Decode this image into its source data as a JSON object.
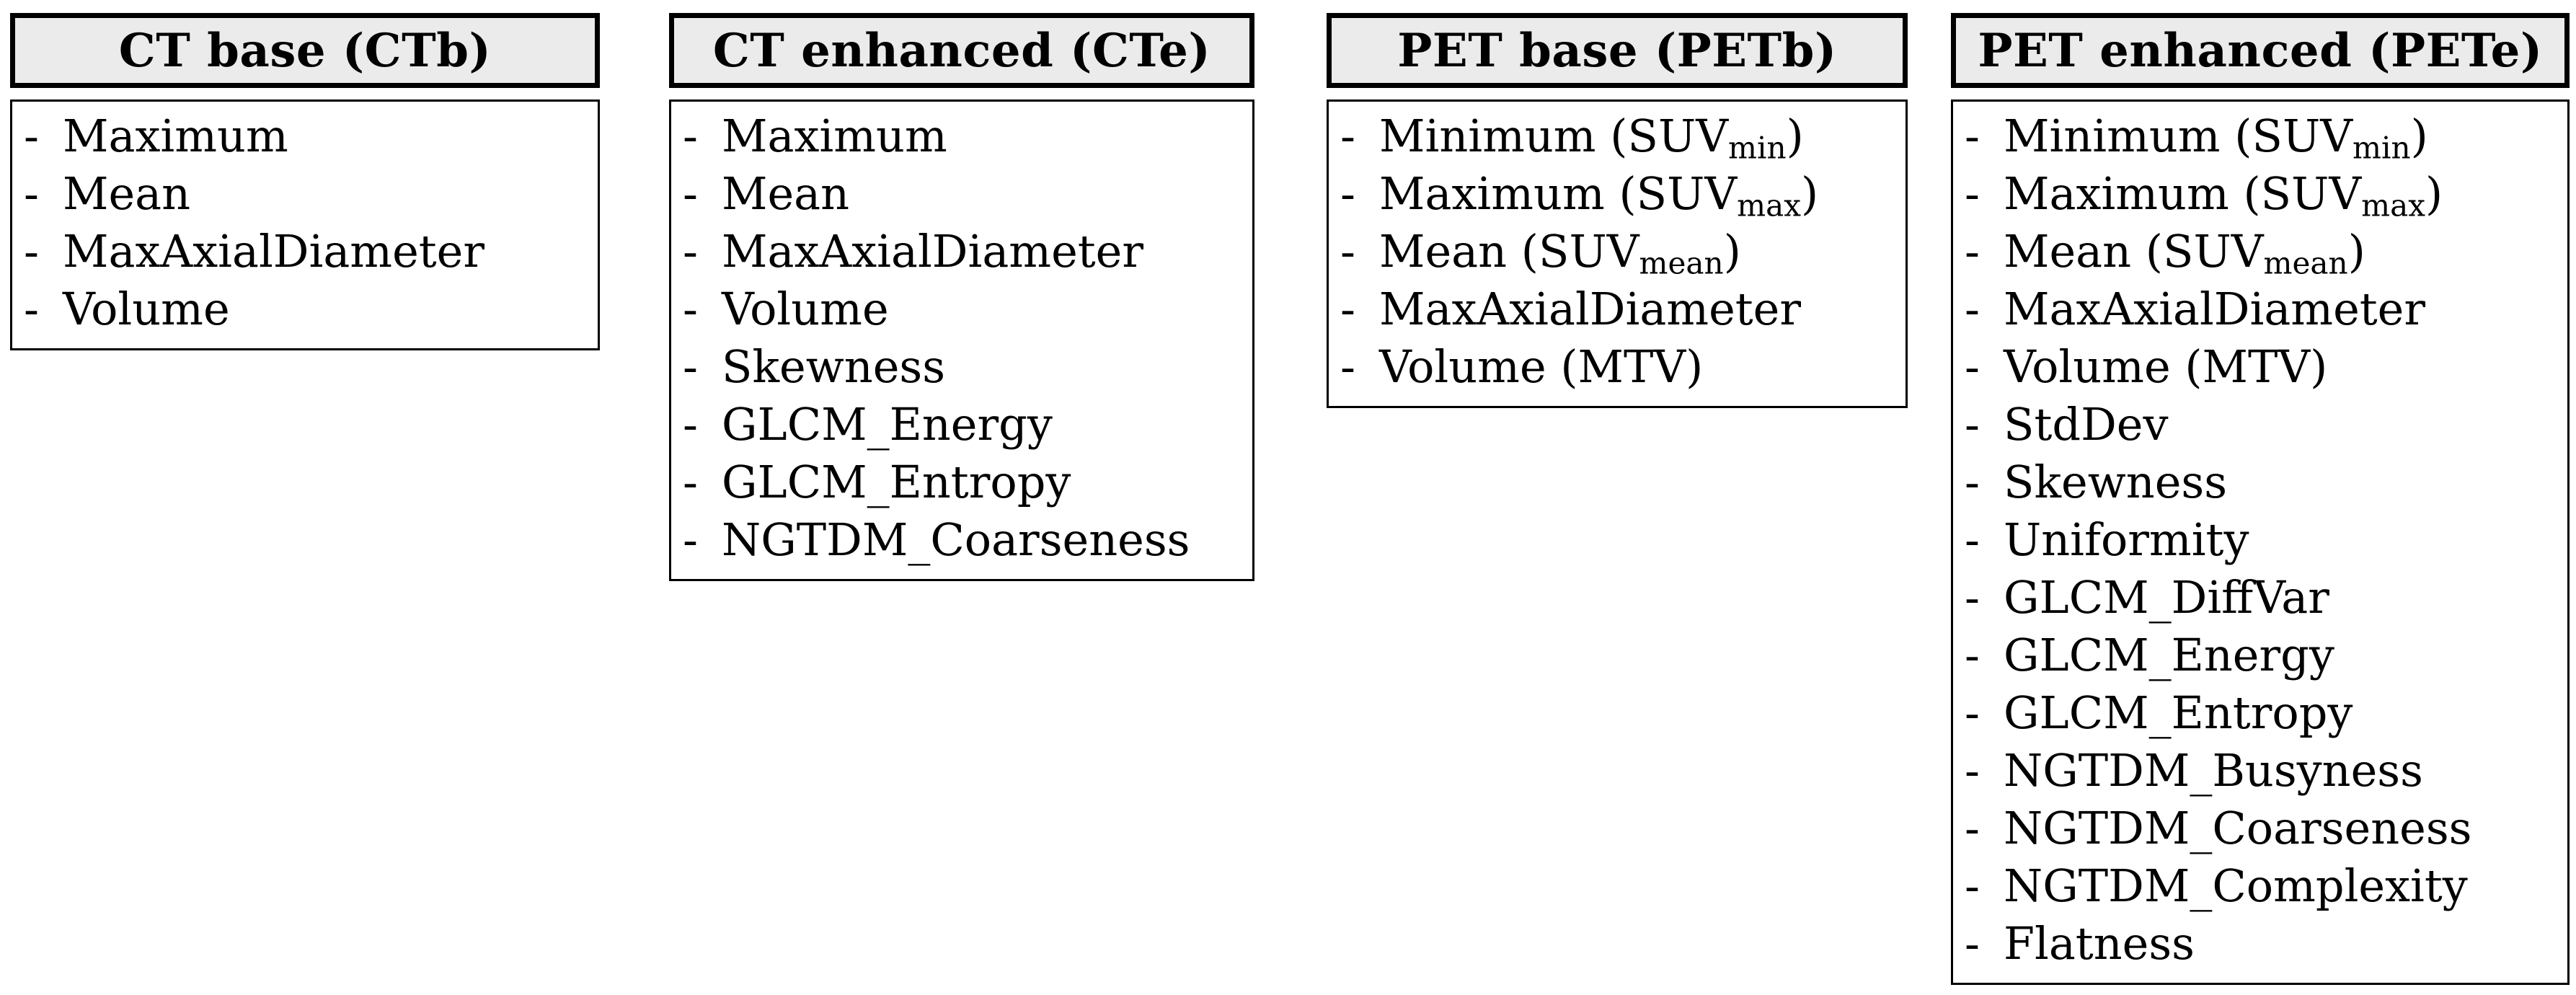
{
  "list_bullet": "-",
  "colors": {
    "header_background": "#ebebeb",
    "border": "#000000",
    "text": "#000000"
  },
  "boxes": [
    {
      "id": "ctb",
      "title": "CT base (CTb)",
      "items": [
        "Maximum",
        "Mean",
        "MaxAxialDiameter",
        "Volume"
      ]
    },
    {
      "id": "cte",
      "title": "CT enhanced (CTe)",
      "items": [
        "Maximum",
        "Mean",
        "MaxAxialDiameter",
        "Volume",
        "Skewness",
        "GLCM_Energy",
        "GLCM_Entropy",
        "NGTDM_Coarseness"
      ]
    },
    {
      "id": "petb",
      "title": "PET base (PETb)",
      "items": [
        "Minimum (SUV_{min})",
        "Maximum (SUV_{max})",
        "Mean (SUV_{mean})",
        "MaxAxialDiameter",
        "Volume (MTV)"
      ]
    },
    {
      "id": "pete",
      "title": "PET enhanced (PETe)",
      "items": [
        "Minimum (SUV_{min})",
        "Maximum (SUV_{max})",
        "Mean (SUV_{mean})",
        "MaxAxialDiameter",
        "Volume (MTV)",
        "StdDev",
        "Skewness",
        "Uniformity",
        "GLCM_DiffVar",
        "GLCM_Energy",
        "GLCM_Entropy",
        "NGTDM_Busyness",
        "NGTDM_Coarseness",
        "NGTDM_Complexity",
        "Flatness"
      ]
    }
  ]
}
